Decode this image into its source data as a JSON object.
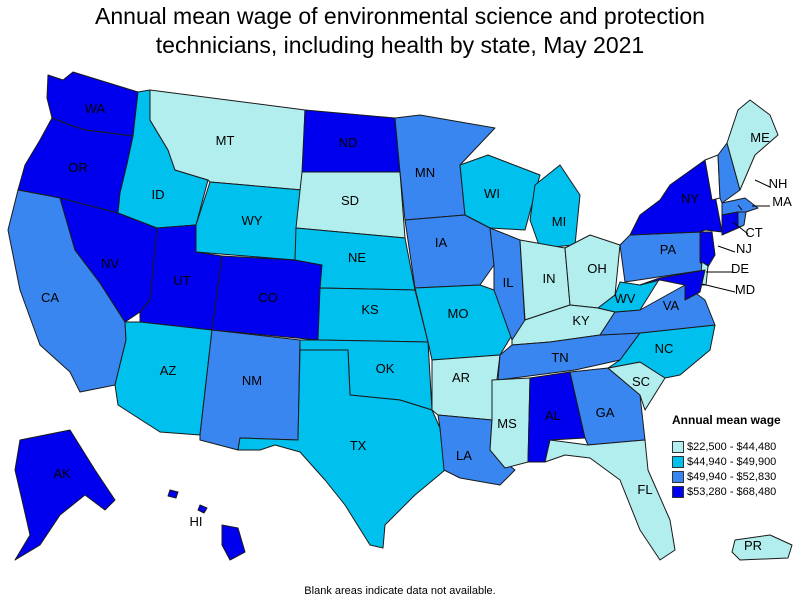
{
  "title": "Annual mean wage of environmental science and protection technicians, including health by state, May 2021",
  "title_lines": [
    "Annual mean wage of environmental science and protection",
    "technicians, including health by state, May 2021"
  ],
  "footnote": "Blank areas indicate data not available.",
  "colors": {
    "c1": "#b2eeee",
    "c2": "#00c0ee",
    "c3": "#3a86f0",
    "c4": "#0000ee",
    "blank": "#ffffff"
  },
  "legend": {
    "title": "Annual mean wage",
    "items": [
      {
        "label": "$22,500 - $44,480",
        "color": "#b2eeee"
      },
      {
        "label": "$44,940 - $49,900",
        "color": "#00c0ee"
      },
      {
        "label": "$49,940 - $52,830",
        "color": "#3a86f0"
      },
      {
        "label": "$53,280 - $68,480",
        "color": "#0000ee"
      }
    ]
  },
  "states": {
    "WA": "c4",
    "OR": "c4",
    "CA": "c3",
    "NV": "c4",
    "ID": "c2",
    "MT": "c1",
    "WY": "c2",
    "UT": "c4",
    "CO": "c4",
    "AZ": "c2",
    "NM": "c3",
    "ND": "c4",
    "SD": "c1",
    "NE": "c2",
    "KS": "c2",
    "OK": "c2",
    "TX": "c2",
    "MN": "c3",
    "IA": "c3",
    "MO": "c2",
    "AR": "c1",
    "LA": "c3",
    "WI": "c2",
    "IL": "c3",
    "MI": "c2",
    "IN": "c1",
    "OH": "c1",
    "KY": "c1",
    "TN": "c3",
    "MS": "c1",
    "AL": "c4",
    "GA": "c3",
    "FL": "c1",
    "SC": "c1",
    "NC": "c2",
    "VA": "c3",
    "WV": "c2",
    "PA": "c3",
    "NY": "c4",
    "VT": "blank",
    "NH": "c3",
    "ME": "c1",
    "MA": "c3",
    "CT": "c4",
    "NJ": "c4",
    "DE": "c1",
    "MD": "c4",
    "RI": "c3",
    "AK": "c4",
    "HI": "c4",
    "PR": "c1"
  }
}
